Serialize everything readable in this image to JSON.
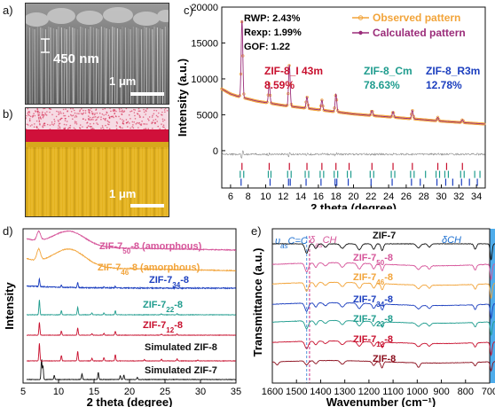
{
  "panels": {
    "a": {
      "label": "a)",
      "scale_text": "450 nm",
      "scalebar_text": "1 μm"
    },
    "b": {
      "label": "b)",
      "scalebar_text": "1 μm"
    },
    "c": {
      "label": "c)",
      "d_label": "d)",
      "e_label": "e)"
    }
  },
  "colors": {
    "observed": "#f2a43a",
    "calculated": "#9b2d7a",
    "residual": "#888888",
    "i43m": "#c8102e",
    "cm": "#1f9c8e",
    "r3m": "#1c3fbf",
    "fill_yellow": "#e3b21f",
    "fill_red": "#d0103a",
    "highlight_blue": "#2f9ee8"
  },
  "chart_data": [
    {
      "id": "c",
      "type": "line",
      "xlabel": "2 theta (degree)",
      "ylabel": "Intensity (a.u.)",
      "xlim": [
        5,
        35
      ],
      "ylim": [
        -5200,
        20000
      ],
      "xticks": [
        6,
        8,
        10,
        12,
        14,
        16,
        18,
        20,
        22,
        24,
        26,
        28,
        30,
        32,
        34
      ],
      "yticks": [
        0,
        5000,
        10000,
        15000,
        20000
      ],
      "stats": {
        "rwp": "RWP: 2.43%",
        "rexp": "Rexp: 1.99%",
        "gof": "GOF: 1.22"
      },
      "legend": {
        "observed": "Observed pattern",
        "calculated": "Calculated pattern"
      },
      "phases": [
        {
          "name": "ZIF-8_I 43m",
          "percent": "8.59%"
        },
        {
          "name": "ZIF-8_Cm",
          "percent": "78.63%"
        },
        {
          "name": "ZIF-8_R3m",
          "percent": "12.78%"
        }
      ],
      "background": [
        [
          5,
          8600
        ],
        [
          6,
          7900
        ],
        [
          7,
          7500
        ],
        [
          9,
          6900
        ],
        [
          12,
          6300
        ],
        [
          16,
          5700
        ],
        [
          20,
          5100
        ],
        [
          25,
          4600
        ],
        [
          30,
          4100
        ],
        [
          35,
          3700
        ]
      ],
      "peaks": [
        [
          7.3,
          10800
        ],
        [
          10.4,
          2700
        ],
        [
          12.7,
          5800
        ],
        [
          14.7,
          1600
        ],
        [
          16.4,
          1400
        ],
        [
          18.0,
          2500
        ],
        [
          22.1,
          700
        ],
        [
          24.5,
          800
        ],
        [
          26.7,
          1200
        ],
        [
          29.6,
          500
        ],
        [
          32.4,
          400
        ]
      ],
      "hkl_ticks": {
        "i43m": [
          7.3,
          10.4,
          12.7,
          14.7,
          16.4,
          18.0,
          19.5,
          22.1,
          24.5,
          26.7,
          29.6,
          30.6,
          32.4
        ],
        "cm": [
          7.1,
          7.5,
          10.3,
          10.6,
          12.5,
          12.9,
          14.5,
          14.9,
          16.2,
          16.6,
          17.8,
          18.2,
          19.3,
          19.7,
          21.9,
          22.3,
          24.3,
          24.7,
          26.5,
          26.9,
          28.2,
          29.4,
          29.8,
          30.4,
          30.8,
          32.2,
          32.6,
          33.8,
          34.4
        ],
        "r3m": [
          7.2,
          10.5,
          12.6,
          12.8,
          14.6,
          16.3,
          17.9,
          18.1,
          19.4,
          22.0,
          24.4,
          26.6,
          27.6,
          29.5,
          30.5,
          31.3,
          32.3,
          33.2,
          34.1
        ]
      }
    },
    {
      "id": "d",
      "type": "line",
      "xlabel": "2 theta (degree)",
      "ylabel": "Intensity",
      "xlim": [
        5,
        35
      ],
      "xticks": [
        5,
        10,
        15,
        20,
        25,
        30,
        35
      ],
      "series": [
        {
          "name": "Simulated ZIF-7",
          "color": "#111111",
          "kind": "sharp",
          "peaks": [
            [
              7.6,
              1.0
            ],
            [
              7.8,
              0.7
            ],
            [
              9.4,
              0.2
            ],
            [
              13.3,
              0.3
            ],
            [
              15.6,
              0.35
            ],
            [
              18.7,
              0.2
            ],
            [
              19.2,
              0.22
            ],
            [
              21.1,
              0.12
            ]
          ]
        },
        {
          "name": "Simulated ZIF-8",
          "color": "#c8102e",
          "kind": "sharp",
          "peaks": [
            [
              7.3,
              1.0
            ],
            [
              10.4,
              0.3
            ],
            [
              12.7,
              0.55
            ],
            [
              14.7,
              0.15
            ],
            [
              16.4,
              0.18
            ],
            [
              18.0,
              0.35
            ],
            [
              22.1,
              0.08
            ],
            [
              24.5,
              0.1
            ],
            [
              26.7,
              0.12
            ],
            [
              29.6,
              0.05
            ]
          ]
        },
        {
          "name": "ZIF-7",
          "sub": "12",
          "suffix": "-8",
          "color": "#c8102e",
          "kind": "sharp",
          "peaks": [
            [
              7.3,
              0.8
            ],
            [
              10.4,
              0.25
            ],
            [
              12.7,
              0.45
            ],
            [
              14.7,
              0.1
            ],
            [
              16.4,
              0.12
            ],
            [
              18.0,
              0.25
            ],
            [
              24.5,
              0.06
            ],
            [
              26.7,
              0.08
            ]
          ]
        },
        {
          "name": "ZIF-7",
          "sub": "22",
          "suffix": "-8",
          "color": "#1f9c8e",
          "kind": "sharp",
          "peaks": [
            [
              7.3,
              0.75
            ],
            [
              10.4,
              0.2
            ],
            [
              12.7,
              0.4
            ],
            [
              14.7,
              0.1
            ],
            [
              16.4,
              0.1
            ],
            [
              18.0,
              0.2
            ],
            [
              24.5,
              0.05
            ],
            [
              26.7,
              0.06
            ]
          ]
        },
        {
          "name": "ZIF-7",
          "sub": "34",
          "suffix": "-8",
          "color": "#1c3fbf",
          "kind": "noisy",
          "peaks": [
            [
              7.3,
              0.55
            ],
            [
              10.4,
              0.15
            ],
            [
              12.7,
              0.35
            ],
            [
              16.4,
              0.08
            ],
            [
              18.0,
              0.12
            ]
          ]
        },
        {
          "name": "ZIF-7",
          "sub": "46",
          "suffix": "-8 (amorphous)",
          "color": "#f2a43a",
          "kind": "amorphous",
          "peaks": [
            [
              7.2,
              0.35
            ],
            [
              11.5,
              0.55
            ]
          ]
        },
        {
          "name": "ZIF-7",
          "sub": "50",
          "suffix": "-8 (amorphous)",
          "color": "#d6559a",
          "kind": "amorphous",
          "peaks": [
            [
              7.2,
              0.3
            ],
            [
              11.5,
              0.5
            ]
          ]
        }
      ]
    },
    {
      "id": "e",
      "type": "line",
      "xlabel": "Wavenumber (cm⁻¹)",
      "ylabel": "Transmittance (a.u.)",
      "xlim": [
        1600,
        700
      ],
      "xticks": [
        1600,
        1500,
        1400,
        1300,
        1200,
        1100,
        1000,
        900,
        800,
        700
      ],
      "annotations": {
        "nu_as": {
          "greek": "υ",
          "sub": "as",
          "rest": "C=C"
        },
        "delta_as": {
          "greek": "δ",
          "sub": "as",
          "rest": "CH"
        },
        "delta_ch": "δCH"
      },
      "series": [
        {
          "name": "ZIF-7",
          "color": "#111111"
        },
        {
          "name": "ZIF-7",
          "sub": "50",
          "suffix": "-8",
          "color": "#d6559a"
        },
        {
          "name": "ZIF-7",
          "sub": "46",
          "suffix": "-8",
          "color": "#f2a43a"
        },
        {
          "name": "ZIF-7",
          "sub": "34",
          "suffix": "-8",
          "color": "#1c3fbf"
        },
        {
          "name": "ZIF-7",
          "sub": "22",
          "suffix": "-8",
          "color": "#1f9c8e"
        },
        {
          "name": "ZIF-7",
          "sub": "12",
          "suffix": "-8",
          "color": "#c8102e"
        },
        {
          "name": "ZIF-8",
          "color": "#8b0d1c"
        }
      ]
    }
  ]
}
